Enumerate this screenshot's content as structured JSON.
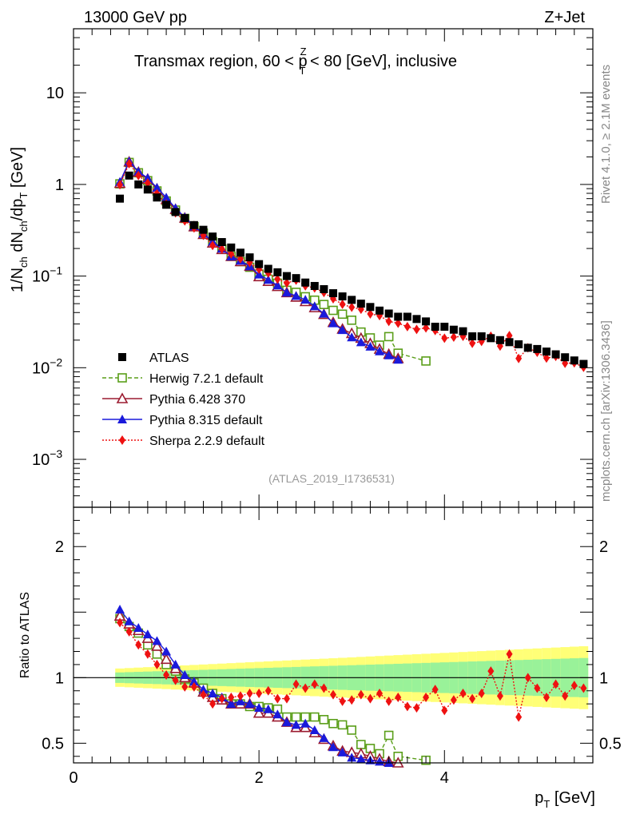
{
  "chart_data": {
    "type": "scatter",
    "header_left": "13000 GeV pp",
    "header_right": "Z+Jet",
    "title": "Transmax region, 60 < p_T^Z < 80 [GeV], inclusive",
    "title_parts": {
      "prefix": "Transmax region, 60 < p",
      "sub": "T",
      "sup": "Z",
      "suffix": " < 80 [GeV], inclusive"
    },
    "xlabel": "p_T [GeV]",
    "xlabel_parts": {
      "main": "p",
      "sub": "T",
      "suffix": " [GeV]"
    },
    "ylabel": "1/N_ch dN_ch/dp_T [GeV]",
    "ylabel_parts": {
      "t1": "1/N",
      "s1": "ch",
      "t2": " dN",
      "s2": "ch",
      "t3": "/dp",
      "s3": "T",
      "t4": " [GeV]"
    },
    "ratio_ylabel": "Ratio to ATLAS",
    "side_label_top": "Rivet 4.1.0, ≥ 2.1M events",
    "side_label_bottom": "mcplots.cern.ch [arXiv:1306.3436]",
    "source_label": "(ATLAS_2019_I1736531)",
    "xlim": [
      0,
      5.6
    ],
    "ylim_log": [
      0.0003,
      50
    ],
    "ratio_ylim": [
      0.35,
      2.3
    ],
    "x_ticks": [
      0,
      2,
      4
    ],
    "x_tick_labels": [
      "0",
      "2",
      "4"
    ],
    "y_ticks": [
      {
        "value": 10,
        "base": "10",
        "exp": ""
      },
      {
        "value": 1,
        "base": "1",
        "exp": ""
      },
      {
        "value": 0.1,
        "base": "10",
        "exp": "−1"
      },
      {
        "value": 0.01,
        "base": "10",
        "exp": "−2"
      },
      {
        "value": 0.001,
        "base": "10",
        "exp": "−3"
      }
    ],
    "ratio_y_ticks": [
      {
        "value": 0.5,
        "label": "0.5"
      },
      {
        "value": 1,
        "label": "1"
      },
      {
        "value": 2,
        "label": "2"
      }
    ],
    "series": [
      {
        "name": "ATLAS",
        "label": "ATLAS",
        "color": "#000000",
        "marker": "square-filled",
        "x": [
          0.5,
          0.6,
          0.7,
          0.8,
          0.9,
          1.0,
          1.1,
          1.2,
          1.3,
          1.4,
          1.5,
          1.6,
          1.7,
          1.8,
          1.9,
          2.0,
          2.1,
          2.2,
          2.3,
          2.4,
          2.5,
          2.6,
          2.7,
          2.8,
          2.9,
          3.0,
          3.1,
          3.2,
          3.3,
          3.4,
          3.5,
          3.6,
          3.7,
          3.8,
          3.9,
          4.0,
          4.1,
          4.2,
          4.3,
          4.4,
          4.5,
          4.6,
          4.7,
          4.8,
          4.9,
          5.0,
          5.1,
          5.2,
          5.3,
          5.4,
          5.5
        ],
        "values": [
          0.7,
          1.25,
          1.0,
          0.88,
          0.72,
          0.6,
          0.5,
          0.43,
          0.36,
          0.32,
          0.27,
          0.235,
          0.205,
          0.18,
          0.16,
          0.135,
          0.12,
          0.11,
          0.1,
          0.095,
          0.085,
          0.078,
          0.072,
          0.065,
          0.06,
          0.055,
          0.05,
          0.046,
          0.042,
          0.039,
          0.036,
          0.036,
          0.034,
          0.032,
          0.028,
          0.028,
          0.026,
          0.025,
          0.022,
          0.022,
          0.021,
          0.02,
          0.019,
          0.018,
          0.0165,
          0.016,
          0.015,
          0.014,
          0.013,
          0.012,
          0.011
        ]
      },
      {
        "name": "Herwig 7.2.1 default",
        "label": "Herwig 7.2.1 default",
        "color": "#5a9e19",
        "marker": "square-open",
        "line": "dashed",
        "ratio_x": [
          0.5,
          0.6,
          0.7,
          0.8,
          0.9,
          1.0,
          1.1,
          1.2,
          1.3,
          1.4,
          1.5,
          1.6,
          1.7,
          1.8,
          1.9,
          2.0,
          2.1,
          2.2,
          2.3,
          2.4,
          2.5,
          2.6,
          2.7,
          2.8,
          2.9,
          3.0,
          3.1,
          3.2,
          3.3,
          3.4,
          3.5,
          3.8
        ],
        "ratio": [
          1.45,
          1.39,
          1.34,
          1.25,
          1.18,
          1.1,
          1.05,
          0.99,
          0.96,
          0.92,
          0.88,
          0.84,
          0.8,
          0.8,
          0.78,
          0.78,
          0.77,
          0.76,
          0.7,
          0.7,
          0.7,
          0.7,
          0.68,
          0.65,
          0.64,
          0.6,
          0.49,
          0.46,
          0.42,
          0.56,
          0.4,
          0.37
        ]
      },
      {
        "name": "Pythia 6.428 370",
        "label": "Pythia 6.428 370",
        "color": "#9b1b30",
        "marker": "triangle-open",
        "line": "solid",
        "ratio_x": [
          0.5,
          0.6,
          0.7,
          0.8,
          0.9,
          1.0,
          1.1,
          1.2,
          1.3,
          1.4,
          1.5,
          1.6,
          1.7,
          1.8,
          1.9,
          2.0,
          2.1,
          2.2,
          2.3,
          2.4,
          2.5,
          2.6,
          2.7,
          2.8,
          2.9,
          3.0,
          3.1,
          3.2,
          3.3,
          3.4,
          3.5
        ],
        "ratio": [
          1.47,
          1.41,
          1.36,
          1.3,
          1.24,
          1.14,
          1.07,
          1.0,
          0.96,
          0.89,
          0.85,
          0.83,
          0.8,
          0.8,
          0.8,
          0.73,
          0.73,
          0.7,
          0.66,
          0.62,
          0.62,
          0.58,
          0.53,
          0.48,
          0.44,
          0.43,
          0.42,
          0.4,
          0.38,
          0.36,
          0.35
        ]
      },
      {
        "name": "Pythia 8.315 default",
        "label": "Pythia 8.315 default",
        "color": "#1a1adb",
        "marker": "triangle-filled",
        "line": "solid",
        "ratio_x": [
          0.5,
          0.6,
          0.7,
          0.8,
          0.9,
          1.0,
          1.1,
          1.2,
          1.3,
          1.4,
          1.5,
          1.6,
          1.7,
          1.8,
          1.9,
          2.0,
          2.1,
          2.2,
          2.3,
          2.4,
          2.5,
          2.6,
          2.7,
          2.8,
          2.9,
          3.0,
          3.1,
          3.2,
          3.3,
          3.4,
          3.5
        ],
        "ratio": [
          1.52,
          1.43,
          1.38,
          1.33,
          1.28,
          1.2,
          1.1,
          1.02,
          0.97,
          0.91,
          0.88,
          0.85,
          0.8,
          0.82,
          0.8,
          0.77,
          0.76,
          0.72,
          0.66,
          0.64,
          0.65,
          0.6,
          0.54,
          0.47,
          0.43,
          0.39,
          0.38,
          0.37,
          0.36,
          0.35,
          0.34
        ]
      },
      {
        "name": "Sherpa 2.2.9 default",
        "label": "Sherpa 2.2.9 default",
        "color": "#ee1111",
        "marker": "diamond-filled",
        "line": "dotted",
        "ratio_x": [
          0.5,
          0.6,
          0.7,
          0.8,
          0.9,
          1.0,
          1.1,
          1.2,
          1.3,
          1.4,
          1.5,
          1.6,
          1.7,
          1.8,
          1.9,
          2.0,
          2.1,
          2.2,
          2.3,
          2.4,
          2.5,
          2.6,
          2.7,
          2.8,
          2.9,
          3.0,
          3.1,
          3.2,
          3.3,
          3.4,
          3.5,
          3.6,
          3.7,
          3.8,
          3.9,
          4.0,
          4.1,
          4.2,
          4.3,
          4.4,
          4.5,
          4.6,
          4.7,
          4.8,
          4.9,
          5.0,
          5.1,
          5.2,
          5.3,
          5.4,
          5.5
        ],
        "ratio": [
          1.42,
          1.35,
          1.25,
          1.18,
          1.1,
          1.02,
          0.98,
          0.93,
          0.93,
          0.87,
          0.8,
          0.84,
          0.85,
          0.86,
          0.88,
          0.88,
          0.9,
          0.84,
          0.84,
          0.95,
          0.92,
          0.95,
          0.92,
          0.87,
          0.82,
          0.83,
          0.87,
          0.84,
          0.88,
          0.82,
          0.85,
          0.78,
          0.77,
          0.85,
          0.91,
          0.75,
          0.83,
          0.88,
          0.84,
          0.88,
          1.05,
          0.86,
          1.18,
          0.7,
          1.0,
          0.92,
          0.85,
          0.95,
          0.86,
          0.94,
          0.92
        ]
      }
    ],
    "legend_position": "center-left"
  }
}
